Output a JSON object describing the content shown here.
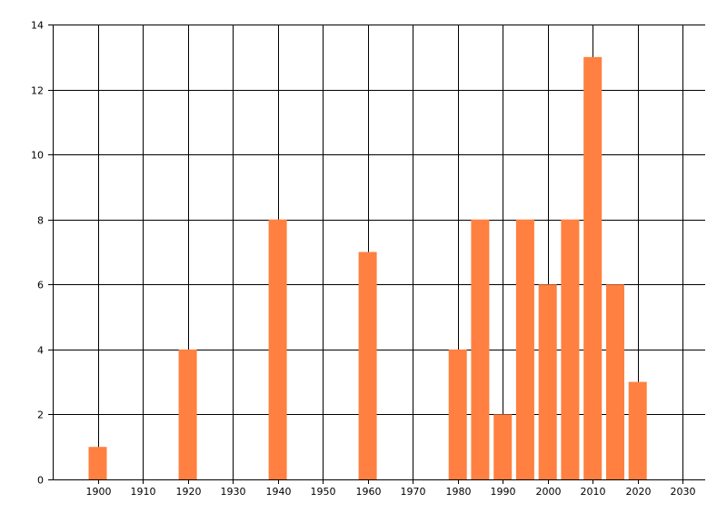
{
  "chart_data": {
    "type": "bar",
    "title": "",
    "xlabel": "",
    "ylabel": "",
    "x": [
      1900,
      1920,
      1940,
      1960,
      1980,
      1985,
      1990,
      1995,
      2000,
      2005,
      2010,
      2015,
      2020
    ],
    "values": [
      1,
      4,
      8,
      7,
      4,
      8,
      2,
      8,
      6,
      8,
      13,
      6,
      3
    ],
    "xlim": [
      1890,
      2035
    ],
    "ylim": [
      0,
      14
    ],
    "x_ticks": [
      1900,
      1910,
      1920,
      1930,
      1940,
      1950,
      1960,
      1970,
      1980,
      1990,
      2000,
      2010,
      2020,
      2030
    ],
    "y_ticks": [
      0,
      2,
      4,
      6,
      8,
      10,
      12,
      14
    ],
    "grid": true,
    "legend": "none",
    "bar_color": "#FF8040"
  }
}
